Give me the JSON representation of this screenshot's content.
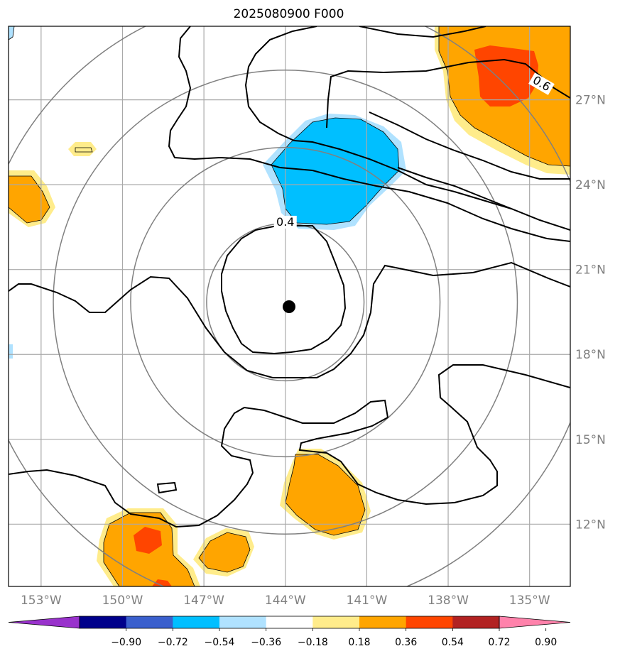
{
  "title": "2025080900 F000",
  "map": {
    "lon_min": -154.2,
    "lon_max": -133.5,
    "lat_min": 9.8,
    "lat_max": 29.6,
    "lon_ticks": [
      {
        "value": -153,
        "label": "153°W"
      },
      {
        "value": -150,
        "label": "150°W"
      },
      {
        "value": -147,
        "label": "147°W"
      },
      {
        "value": -144,
        "label": "144°W"
      },
      {
        "value": -141,
        "label": "141°W"
      },
      {
        "value": -138,
        "label": "138°W"
      },
      {
        "value": -135,
        "label": "135°W"
      }
    ],
    "lat_ticks": [
      {
        "value": 27,
        "label": "27°N"
      },
      {
        "value": 24,
        "label": "24°N"
      },
      {
        "value": 21,
        "label": "21°N"
      },
      {
        "value": 18,
        "label": "18°N"
      },
      {
        "value": 15,
        "label": "15°N"
      },
      {
        "value": 12,
        "label": "12°N"
      }
    ],
    "center": {
      "lon": -144.0,
      "lat": 19.85
    },
    "range_rings_deg": [
      2.9,
      5.7,
      8.55,
      11.4
    ],
    "contour_labels": [
      {
        "text": "0.4",
        "lon": -144.0,
        "lat": 22.6
      },
      {
        "text": "0.6",
        "lon": -134.6,
        "lat": 27.5
      }
    ]
  },
  "colorbar": {
    "colors": [
      "#9932cc",
      "#00008b",
      "#3a5fcd",
      "#00bfff",
      "#b0e2ff",
      "#ffffff",
      "#ffec8b",
      "#ffa500",
      "#ff4500",
      "#b22222",
      "#ff82ab"
    ],
    "labels": [
      "−0.90",
      "−0.72",
      "−0.54",
      "−0.36",
      "−0.18",
      "0.18",
      "0.36",
      "0.54",
      "0.72",
      "0.90"
    ]
  }
}
